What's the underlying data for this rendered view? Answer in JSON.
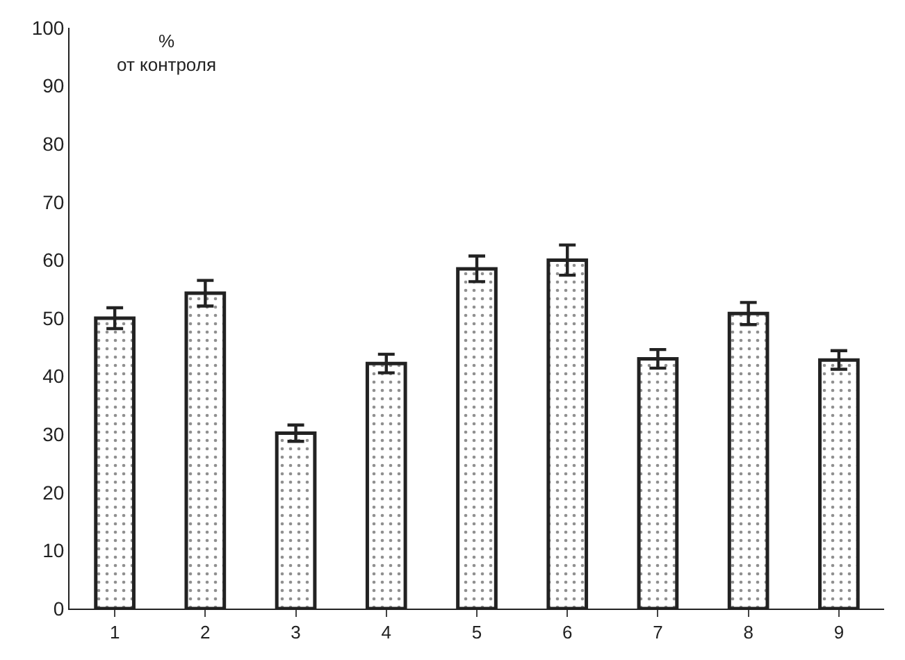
{
  "chart_data": {
    "type": "bar",
    "ylabel": "%\nот контроля",
    "categories": [
      "1",
      "2",
      "3",
      "4",
      "5",
      "6",
      "7",
      "8",
      "9"
    ],
    "values": [
      50,
      54.3,
      30.2,
      42.2,
      58.5,
      60,
      43,
      50.8,
      42.8
    ],
    "errors": [
      1.8,
      2.2,
      1.4,
      1.6,
      2.2,
      2.6,
      1.6,
      1.9,
      1.6
    ],
    "color": "#222222",
    "ylim": [
      0,
      100
    ],
    "yticks": [
      0,
      10,
      20,
      30,
      40,
      50,
      60,
      70,
      80,
      90,
      100
    ],
    "legend": false
  }
}
